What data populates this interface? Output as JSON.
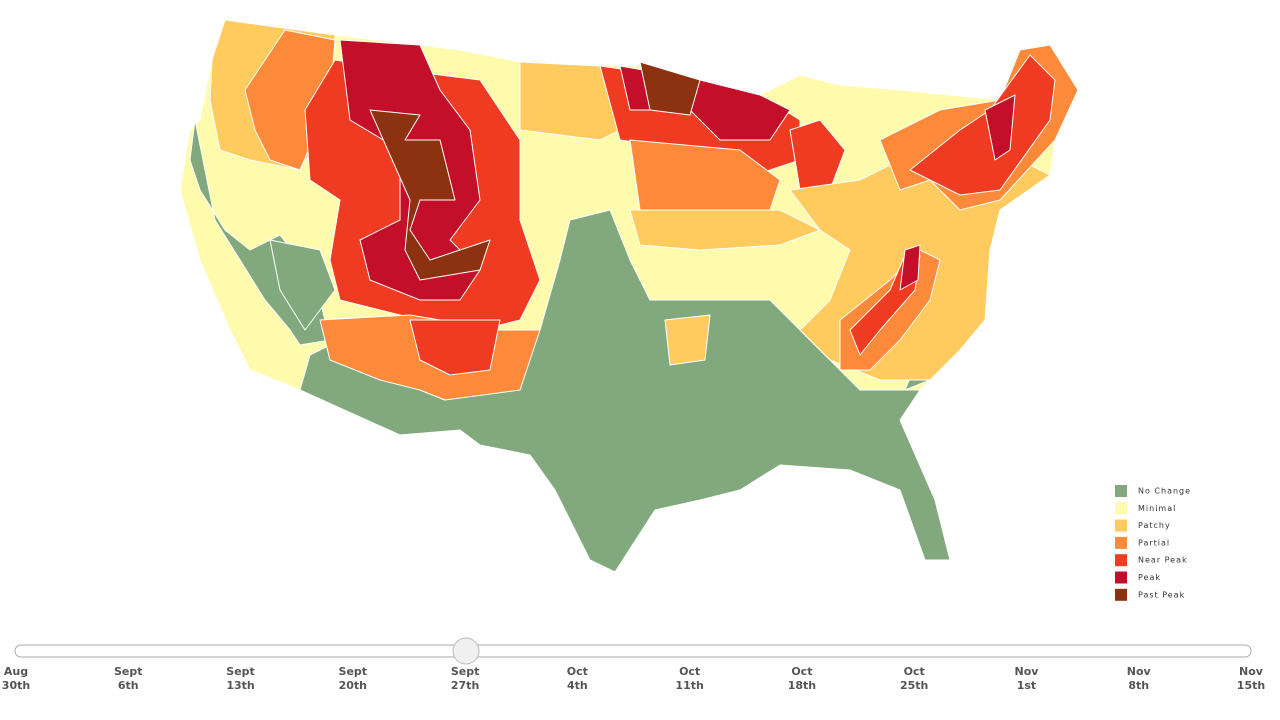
{
  "legend": {
    "items": [
      {
        "label": "No Change",
        "color": "#82a97d"
      },
      {
        "label": "Minimal",
        "color": "#fffbad"
      },
      {
        "label": "Patchy",
        "color": "#ffcb5e"
      },
      {
        "label": "Partial",
        "color": "#fc8a3a"
      },
      {
        "label": "Near Peak",
        "color": "#ef3b22"
      },
      {
        "label": "Peak",
        "color": "#c40f2a"
      },
      {
        "label": "Past Peak",
        "color": "#8c3210"
      }
    ]
  },
  "slider": {
    "labels": [
      {
        "month": "Aug",
        "day": "30th"
      },
      {
        "month": "Sept",
        "day": "6th"
      },
      {
        "month": "Sept",
        "day": "13th"
      },
      {
        "month": "Sept",
        "day": "20th"
      },
      {
        "month": "Sept",
        "day": "27th"
      },
      {
        "month": "Oct",
        "day": "4th"
      },
      {
        "month": "Oct",
        "day": "11th"
      },
      {
        "month": "Oct",
        "day": "18th"
      },
      {
        "month": "Oct",
        "day": "25th"
      },
      {
        "month": "Nov",
        "day": "1st"
      },
      {
        "month": "Nov",
        "day": "8th"
      },
      {
        "month": "Nov",
        "day": "15th"
      }
    ]
  }
}
